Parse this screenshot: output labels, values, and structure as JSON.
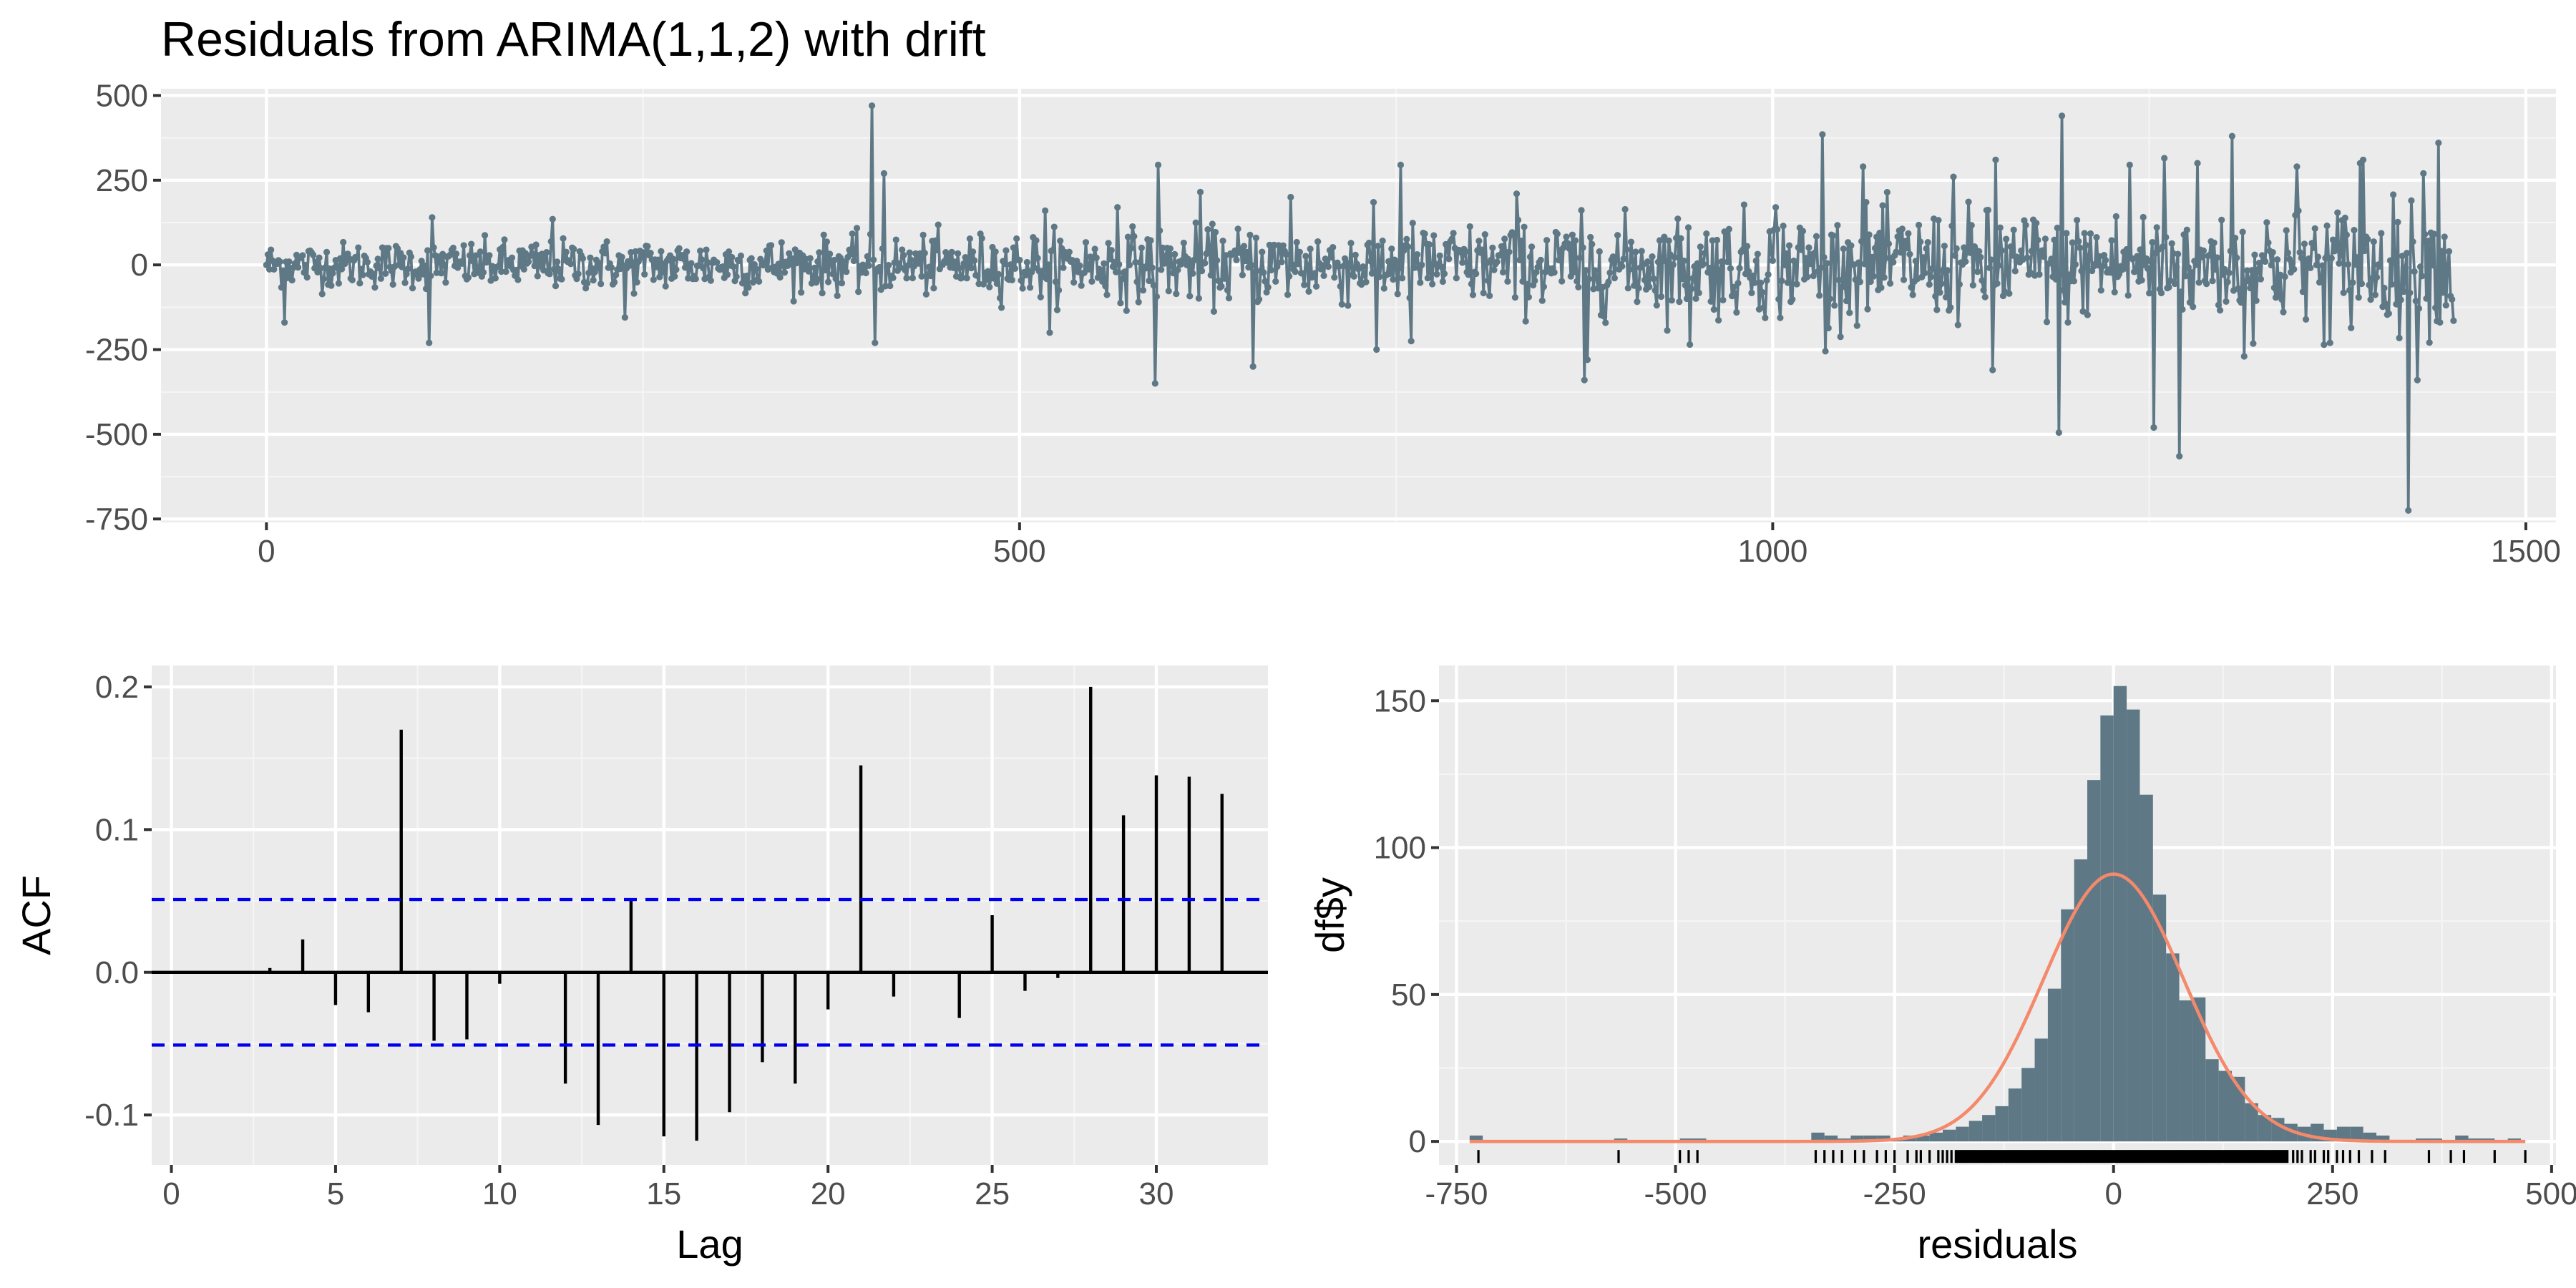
{
  "figure": {
    "title": "Residuals from ARIMA(1,1,2) with drift"
  },
  "colors": {
    "panel_bg": "#ebebeb",
    "grid_major": "#ffffff",
    "grid_minor": "#f5f5f5",
    "series": "#5f7886",
    "acf_bar": "#000000",
    "ci_line": "#0000ee",
    "hist_fill": "#5f7886",
    "density": "#f4896b",
    "rug": "#000000",
    "tick_text": "#4d4d4d",
    "axis_text": "#000000"
  },
  "chart_data": [
    {
      "id": "residual_series",
      "type": "line",
      "title": "Residuals from ARIMA(1,1,2) with drift",
      "xlabel": "",
      "ylabel": "",
      "xlim": [
        -70,
        1520
      ],
      "ylim": [
        -760,
        520
      ],
      "xticks": [
        0,
        500,
        1000,
        1500
      ],
      "xtick_labels": [
        "0",
        "500",
        "1000",
        "1500"
      ],
      "yticks": [
        500,
        250,
        0,
        -250,
        -500,
        -750
      ],
      "ytick_labels": [
        "500",
        "250",
        "0",
        "-250",
        "-500",
        "-750"
      ],
      "n": 1452,
      "noise_sd_by_index": [
        [
          0,
          40
        ],
        [
          400,
          50
        ],
        [
          580,
          65
        ],
        [
          800,
          75
        ],
        [
          1000,
          95
        ],
        [
          1452,
          110
        ]
      ],
      "notable_points": [
        {
          "x": 0,
          "y": 0
        },
        {
          "x": 12,
          "y": -170
        },
        {
          "x": 108,
          "y": -230
        },
        {
          "x": 110,
          "y": 140
        },
        {
          "x": 190,
          "y": -185
        },
        {
          "x": 190,
          "y": 135
        },
        {
          "x": 238,
          "y": -155
        },
        {
          "x": 402,
          "y": 470
        },
        {
          "x": 404,
          "y": -230
        },
        {
          "x": 410,
          "y": 270
        },
        {
          "x": 517,
          "y": 160
        },
        {
          "x": 520,
          "y": -200
        },
        {
          "x": 565,
          "y": 170
        },
        {
          "x": 590,
          "y": -350
        },
        {
          "x": 592,
          "y": 295
        },
        {
          "x": 620,
          "y": 215
        },
        {
          "x": 655,
          "y": -300
        },
        {
          "x": 680,
          "y": 200
        },
        {
          "x": 735,
          "y": 185
        },
        {
          "x": 737,
          "y": -250
        },
        {
          "x": 753,
          "y": 295
        },
        {
          "x": 760,
          "y": -225
        },
        {
          "x": 830,
          "y": 210
        },
        {
          "x": 875,
          "y": -340
        },
        {
          "x": 877,
          "y": -280
        },
        {
          "x": 945,
          "y": -235
        },
        {
          "x": 1002,
          "y": 170
        },
        {
          "x": 1033,
          "y": 385
        },
        {
          "x": 1035,
          "y": -255
        },
        {
          "x": 1060,
          "y": 290
        },
        {
          "x": 1120,
          "y": 260
        },
        {
          "x": 1146,
          "y": -310
        },
        {
          "x": 1148,
          "y": 310
        },
        {
          "x": 1190,
          "y": -495
        },
        {
          "x": 1192,
          "y": 440
        },
        {
          "x": 1237,
          "y": 295
        },
        {
          "x": 1253,
          "y": -480
        },
        {
          "x": 1260,
          "y": 315
        },
        {
          "x": 1270,
          "y": -565
        },
        {
          "x": 1282,
          "y": 300
        },
        {
          "x": 1305,
          "y": 380
        },
        {
          "x": 1313,
          "y": -270
        },
        {
          "x": 1348,
          "y": 290
        },
        {
          "x": 1370,
          "y": -230
        },
        {
          "x": 1390,
          "y": 300
        },
        {
          "x": 1392,
          "y": 310
        },
        {
          "x": 1422,
          "y": -725
        },
        {
          "x": 1428,
          "y": -340
        },
        {
          "x": 1432,
          "y": 270
        },
        {
          "x": 1442,
          "y": 360
        },
        {
          "x": 1452,
          "y": -165
        }
      ]
    },
    {
      "id": "acf",
      "type": "bar",
      "xlabel": "Lag",
      "ylabel": "ACF",
      "xlim": [
        -0.6,
        33.4
      ],
      "ylim": [
        -0.135,
        0.215
      ],
      "xticks": [
        0,
        5,
        10,
        15,
        20,
        25,
        30
      ],
      "xtick_labels": [
        "0",
        "5",
        "10",
        "15",
        "20",
        "25",
        "30"
      ],
      "yticks": [
        0.2,
        0.1,
        0.0,
        -0.1
      ],
      "ytick_labels": [
        "0.2",
        "0.1",
        "0.0",
        "-0.1"
      ],
      "lags": [
        1,
        2,
        3,
        4,
        5,
        6,
        7,
        8,
        9,
        10,
        11,
        12,
        13,
        14,
        15,
        16,
        17,
        18,
        19,
        20,
        21,
        22,
        23,
        24,
        25,
        26,
        27,
        28,
        29,
        30,
        31,
        32
      ],
      "values": [
        0.0,
        0.0,
        0.003,
        0.023,
        -0.023,
        -0.028,
        0.17,
        -0.048,
        -0.047,
        -0.008,
        -0.001,
        -0.078,
        -0.107,
        0.05,
        -0.115,
        -0.118,
        -0.098,
        -0.063,
        -0.078,
        -0.026,
        0.145,
        -0.017,
        0.0,
        -0.032,
        0.04,
        -0.013,
        -0.004,
        0.2,
        0.11,
        0.138,
        0.137,
        0.125
      ],
      "confidence_bounds": [
        0.051,
        -0.051
      ]
    },
    {
      "id": "histogram",
      "type": "bar",
      "xlabel": "residuals",
      "ylabel": "df$y",
      "xlim": [
        -770,
        505
      ],
      "ylim": [
        -8,
        162
      ],
      "xticks": [
        -750,
        -500,
        -250,
        0,
        250,
        500
      ],
      "xtick_labels": [
        "-750",
        "-500",
        "-250",
        "0",
        "250",
        "500"
      ],
      "yticks": [
        150,
        100,
        50,
        0
      ],
      "ytick_labels": [
        "150",
        "100",
        "50",
        "0"
      ],
      "bin_width": 15,
      "bin_starts": [
        -735,
        -570,
        -495,
        -480,
        -345,
        -330,
        -315,
        -300,
        -285,
        -270,
        -255,
        -240,
        -225,
        -210,
        -195,
        -180,
        -165,
        -150,
        -135,
        -120,
        -105,
        -90,
        -75,
        -60,
        -45,
        -30,
        -15,
        0,
        15,
        30,
        45,
        60,
        75,
        90,
        105,
        120,
        135,
        150,
        165,
        180,
        195,
        210,
        225,
        240,
        255,
        270,
        285,
        300,
        345,
        360,
        390,
        405,
        420,
        450
      ],
      "counts": [
        2,
        1,
        1,
        1,
        3,
        2,
        1,
        2,
        2,
        2,
        1,
        2,
        2,
        3,
        4,
        5,
        7,
        9,
        12,
        18,
        25,
        35,
        52,
        79,
        96,
        123,
        145,
        155,
        147,
        118,
        84,
        64,
        48,
        49,
        28,
        24,
        22,
        13,
        9,
        8,
        6,
        5,
        6,
        4,
        5,
        5,
        3,
        2,
        1,
        1,
        2,
        1,
        1,
        1
      ],
      "density_curve": {
        "mean": 0,
        "peak": 91,
        "sd": 80
      },
      "rug_positions": [
        -725,
        -565,
        -495,
        -485,
        -475,
        -340,
        -330,
        -320,
        -310,
        -295,
        -285,
        -270,
        -260,
        -250,
        -235,
        -225,
        -220,
        -210,
        -200,
        -195,
        -190,
        -185,
        205,
        210,
        215,
        225,
        230,
        240,
        245,
        255,
        262,
        270,
        280,
        295,
        310,
        360,
        385,
        400,
        435,
        470
      ],
      "rug_dense_range": [
        -180,
        200
      ]
    }
  ]
}
